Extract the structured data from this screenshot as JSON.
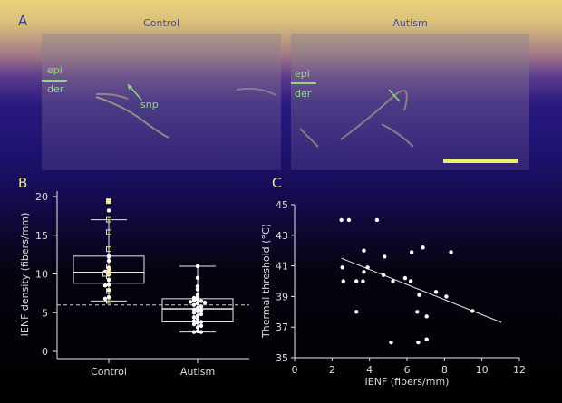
{
  "panel_a": {
    "letter": "A",
    "images": [
      {
        "title": "Control",
        "epi": "epi",
        "der": "der",
        "arrow_label": "snp"
      },
      {
        "title": "Autism",
        "epi": "epi",
        "der": "der"
      }
    ],
    "scale_bar_color": "#e6f06a"
  },
  "chart_data": [
    {
      "panel": "B",
      "type": "box",
      "ylabel": "IENF density (fibers/mm)",
      "categories": [
        "Control",
        "Autism"
      ],
      "ylim": [
        0,
        20
      ],
      "yticks": [
        "0",
        "5",
        "10",
        "15",
        "20"
      ],
      "reference_line": 6.0,
      "boxes": [
        {
          "name": "Control",
          "whisker_low": 6.5,
          "q1": 8.8,
          "median": 10.2,
          "q3": 12.3,
          "whisker_high": 17.0
        },
        {
          "name": "Autism",
          "whisker_low": 2.5,
          "q1": 3.8,
          "median": 5.5,
          "q3": 6.8,
          "whisker_high": 11.0
        }
      ],
      "points": {
        "Control": {
          "squares": [
            19.4,
            17.0,
            15.4,
            13.2,
            11.0,
            10.2,
            10.0,
            9.7,
            7.8,
            6.5
          ],
          "circles": [
            18.2,
            12.3,
            12.2,
            11.7,
            10.8,
            10.5,
            10.3,
            9.9,
            9.2,
            8.6,
            8.5,
            7.9,
            7.0,
            6.8
          ]
        },
        "Autism": {
          "circles": [
            11.0,
            9.5,
            8.4,
            8.0,
            7.3,
            7.0,
            6.9,
            6.7,
            6.6,
            6.5,
            6.4,
            6.3,
            6.2,
            6.0,
            5.8,
            5.6,
            5.4,
            5.3,
            5.2,
            5.0,
            4.8,
            4.6,
            4.4,
            4.2,
            3.9,
            3.8,
            3.7,
            3.5,
            3.3,
            3.1,
            2.6,
            2.5,
            2.5
          ]
        }
      }
    },
    {
      "panel": "C",
      "type": "scatter",
      "xlabel": "IENF (fibers/mm)",
      "ylabel": "Thermal threshold (°C)",
      "xlim": [
        0,
        12
      ],
      "ylim": [
        35,
        45
      ],
      "xticks": [
        "0",
        "2",
        "4",
        "6",
        "8",
        "10",
        "12"
      ],
      "yticks": [
        "35",
        "37",
        "39",
        "41",
        "43",
        "45"
      ],
      "points": [
        [
          2.5,
          44
        ],
        [
          2.9,
          44
        ],
        [
          4.4,
          44
        ],
        [
          2.55,
          40.9
        ],
        [
          2.6,
          40
        ],
        [
          3.3,
          40
        ],
        [
          3.3,
          38
        ],
        [
          3.7,
          42
        ],
        [
          3.7,
          40.6
        ],
        [
          3.65,
          40
        ],
        [
          3.9,
          40.9
        ],
        [
          4.8,
          41.6
        ],
        [
          4.75,
          40.4
        ],
        [
          5.25,
          40
        ],
        [
          5.15,
          36
        ],
        [
          5.9,
          40.2
        ],
        [
          6.25,
          41.9
        ],
        [
          6.2,
          40
        ],
        [
          6.85,
          42.2
        ],
        [
          6.65,
          39.1
        ],
        [
          6.55,
          38
        ],
        [
          6.6,
          36
        ],
        [
          7.05,
          37.7
        ],
        [
          7.05,
          36.2
        ],
        [
          7.55,
          39.3
        ],
        [
          8.1,
          39
        ],
        [
          8.35,
          41.9
        ],
        [
          9.5,
          38.05
        ]
      ],
      "regression": {
        "x": [
          2.5,
          11.05
        ],
        "y": [
          41.5,
          37.3
        ]
      }
    }
  ],
  "letters": {
    "b": "B",
    "c": "C"
  }
}
